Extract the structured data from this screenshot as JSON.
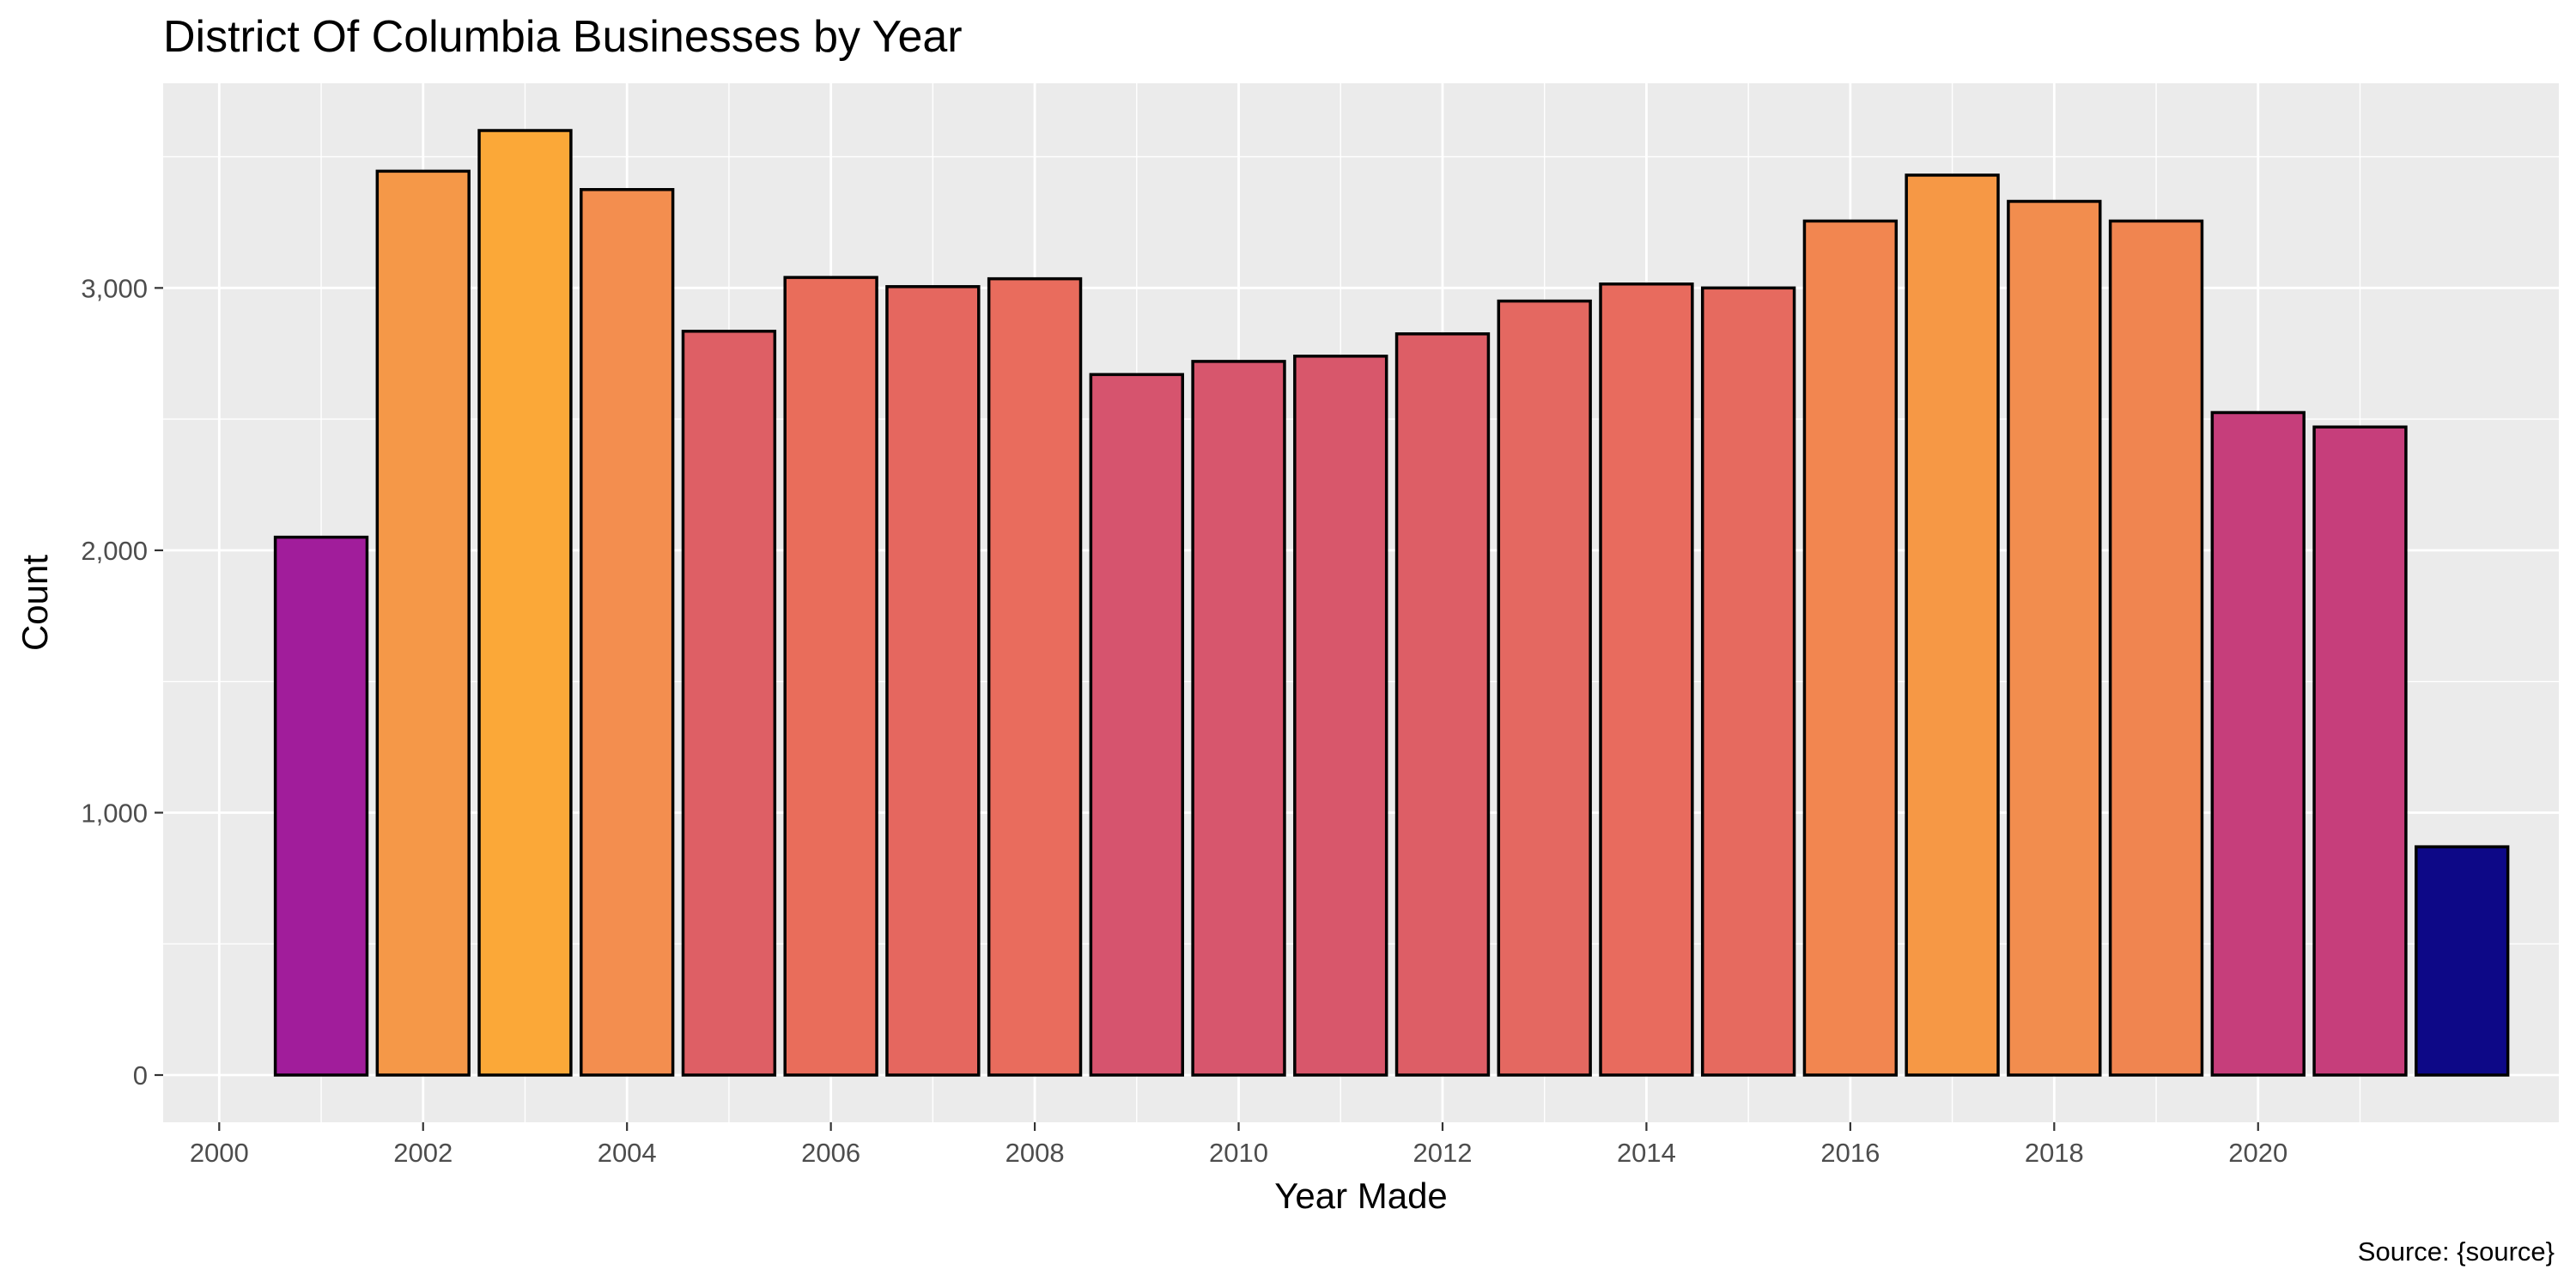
{
  "chart_data": {
    "type": "bar",
    "title": "District Of Columbia Businesses by Year",
    "xlabel": "Year Made",
    "ylabel": "Count",
    "caption": "Source: {source}",
    "x": [
      2001,
      2002,
      2003,
      2004,
      2005,
      2006,
      2007,
      2008,
      2009,
      2010,
      2011,
      2012,
      2013,
      2014,
      2015,
      2016,
      2017,
      2018,
      2019,
      2020,
      2021,
      2022
    ],
    "values": [
      2050,
      3445,
      3600,
      3375,
      2835,
      3040,
      3005,
      3035,
      2670,
      2720,
      2740,
      2825,
      2950,
      3015,
      3000,
      3255,
      3430,
      3330,
      3255,
      2525,
      2470,
      870
    ],
    "colors": [
      "#a11d9b",
      "#f59848",
      "#fba838",
      "#f38e4f",
      "#de5f65",
      "#e96d5b",
      "#e5675f",
      "#e96c5d",
      "#d6546e",
      "#d7566d",
      "#d8576b",
      "#dd5e66",
      "#e46861",
      "#e86b5e",
      "#e66a5f",
      "#f28650",
      "#f69845",
      "#f28d4e",
      "#f08550",
      "#c63e7b",
      "#c63e7b",
      "#0d0887"
    ],
    "x_ticks": [
      "2000",
      "2002",
      "2004",
      "2006",
      "2008",
      "2010",
      "2012",
      "2014",
      "2016",
      "2018",
      "2020"
    ],
    "y_ticks": [
      "0",
      "1,000",
      "2,000",
      "3,000"
    ],
    "xlim": [
      1999.45,
      2022.95
    ],
    "ylim": [
      -180,
      3780
    ],
    "grid": true,
    "panel_background": "#ebebeb",
    "bar_outline": "#000000"
  }
}
